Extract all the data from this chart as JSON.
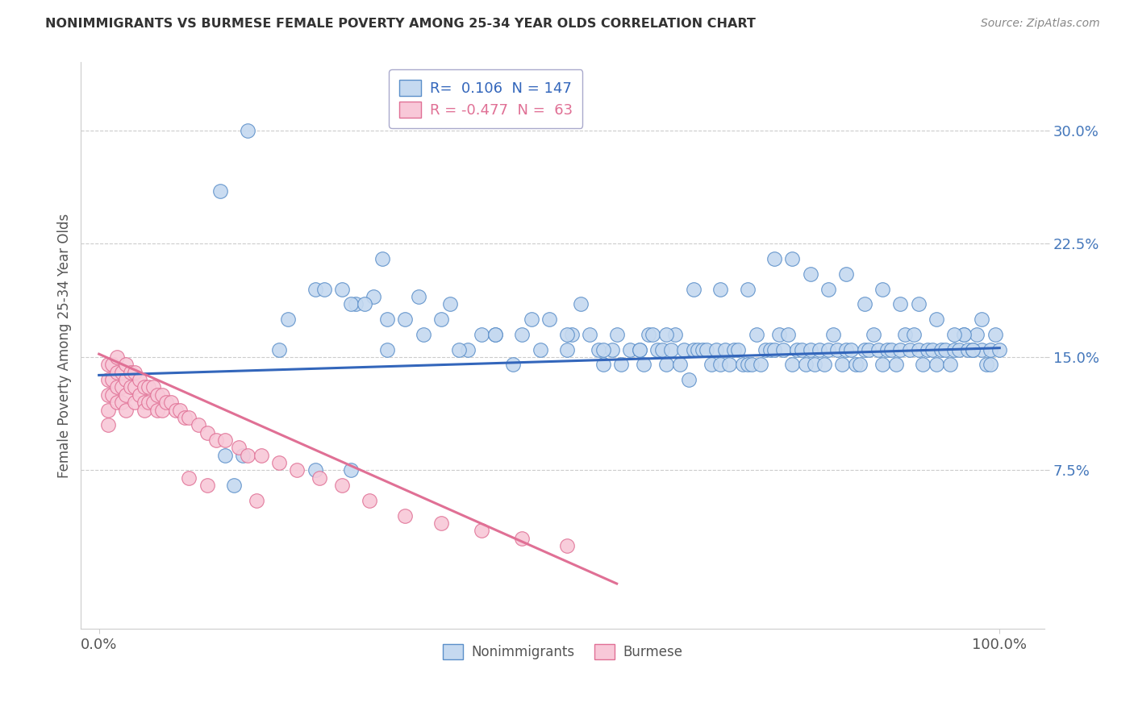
{
  "title": "NONIMMIGRANTS VS BURMESE FEMALE POVERTY AMONG 25-34 YEAR OLDS CORRELATION CHART",
  "source": "Source: ZipAtlas.com",
  "ylabel": "Female Poverty Among 25-34 Year Olds",
  "ytick_values": [
    0.075,
    0.15,
    0.225,
    0.3
  ],
  "ytick_labels": [
    "7.5%",
    "15.0%",
    "22.5%",
    "30.0%"
  ],
  "xtick_left_label": "0.0%",
  "xtick_right_label": "100.0%",
  "legend_blue_r": "0.106",
  "legend_blue_n": "147",
  "legend_pink_r": "-0.477",
  "legend_pink_n": "63",
  "blue_face": "#c5d9f0",
  "blue_edge": "#5b8fc9",
  "pink_face": "#f8c8d8",
  "pink_edge": "#e07095",
  "blue_line": "#3366bb",
  "pink_line": "#e07095",
  "grid_color": "#cccccc",
  "title_color": "#333333",
  "source_color": "#888888",
  "blue_trend_x": [
    0.0,
    1.0
  ],
  "blue_trend_y": [
    0.138,
    0.156
  ],
  "pink_trend_x": [
    0.0,
    0.575
  ],
  "pink_trend_y": [
    0.152,
    0.0
  ],
  "xlim": [
    -0.02,
    1.05
  ],
  "ylim": [
    -0.03,
    0.345
  ],
  "blue_x": [
    0.135,
    0.165,
    0.27,
    0.315,
    0.21,
    0.24,
    0.285,
    0.25,
    0.28,
    0.305,
    0.32,
    0.295,
    0.34,
    0.355,
    0.38,
    0.39,
    0.41,
    0.425,
    0.44,
    0.46,
    0.47,
    0.49,
    0.5,
    0.52,
    0.525,
    0.535,
    0.545,
    0.555,
    0.56,
    0.57,
    0.575,
    0.58,
    0.59,
    0.6,
    0.605,
    0.61,
    0.615,
    0.62,
    0.625,
    0.63,
    0.635,
    0.64,
    0.645,
    0.65,
    0.655,
    0.66,
    0.665,
    0.67,
    0.675,
    0.68,
    0.685,
    0.69,
    0.695,
    0.7,
    0.705,
    0.71,
    0.715,
    0.72,
    0.725,
    0.73,
    0.735,
    0.74,
    0.745,
    0.75,
    0.755,
    0.76,
    0.765,
    0.77,
    0.775,
    0.78,
    0.785,
    0.79,
    0.795,
    0.8,
    0.805,
    0.81,
    0.815,
    0.82,
    0.825,
    0.83,
    0.835,
    0.84,
    0.845,
    0.85,
    0.855,
    0.86,
    0.865,
    0.87,
    0.875,
    0.88,
    0.885,
    0.89,
    0.895,
    0.9,
    0.905,
    0.91,
    0.915,
    0.92,
    0.925,
    0.93,
    0.935,
    0.94,
    0.945,
    0.95,
    0.955,
    0.96,
    0.965,
    0.97,
    0.975,
    0.98,
    0.985,
    0.99,
    0.995,
    1.0,
    0.99,
    0.97,
    0.98,
    0.96,
    0.95,
    0.93,
    0.91,
    0.89,
    0.87,
    0.85,
    0.83,
    0.81,
    0.79,
    0.77,
    0.75,
    0.72,
    0.69,
    0.66,
    0.63,
    0.6,
    0.56,
    0.52,
    0.48,
    0.44,
    0.4,
    0.36,
    0.32,
    0.28,
    0.24,
    0.2,
    0.16,
    0.15,
    0.14
  ],
  "blue_y": [
    0.26,
    0.3,
    0.195,
    0.215,
    0.175,
    0.195,
    0.185,
    0.195,
    0.185,
    0.19,
    0.175,
    0.185,
    0.175,
    0.19,
    0.175,
    0.185,
    0.155,
    0.165,
    0.165,
    0.145,
    0.165,
    0.155,
    0.175,
    0.155,
    0.165,
    0.185,
    0.165,
    0.155,
    0.145,
    0.155,
    0.165,
    0.145,
    0.155,
    0.155,
    0.145,
    0.165,
    0.165,
    0.155,
    0.155,
    0.145,
    0.155,
    0.165,
    0.145,
    0.155,
    0.135,
    0.155,
    0.155,
    0.155,
    0.155,
    0.145,
    0.155,
    0.145,
    0.155,
    0.145,
    0.155,
    0.155,
    0.145,
    0.145,
    0.145,
    0.165,
    0.145,
    0.155,
    0.155,
    0.155,
    0.165,
    0.155,
    0.165,
    0.145,
    0.155,
    0.155,
    0.145,
    0.155,
    0.145,
    0.155,
    0.145,
    0.155,
    0.165,
    0.155,
    0.145,
    0.155,
    0.155,
    0.145,
    0.145,
    0.155,
    0.155,
    0.165,
    0.155,
    0.145,
    0.155,
    0.155,
    0.145,
    0.155,
    0.165,
    0.155,
    0.165,
    0.155,
    0.145,
    0.155,
    0.155,
    0.145,
    0.155,
    0.155,
    0.145,
    0.155,
    0.155,
    0.165,
    0.155,
    0.155,
    0.165,
    0.155,
    0.145,
    0.155,
    0.165,
    0.155,
    0.145,
    0.155,
    0.175,
    0.165,
    0.165,
    0.175,
    0.185,
    0.185,
    0.195,
    0.185,
    0.205,
    0.195,
    0.205,
    0.215,
    0.215,
    0.195,
    0.195,
    0.195,
    0.165,
    0.155,
    0.155,
    0.165,
    0.175,
    0.165,
    0.155,
    0.165,
    0.155,
    0.075,
    0.075,
    0.155,
    0.085,
    0.065,
    0.085
  ],
  "pink_x": [
    0.01,
    0.01,
    0.01,
    0.01,
    0.01,
    0.015,
    0.015,
    0.015,
    0.02,
    0.02,
    0.02,
    0.02,
    0.025,
    0.025,
    0.025,
    0.03,
    0.03,
    0.03,
    0.03,
    0.035,
    0.035,
    0.04,
    0.04,
    0.04,
    0.045,
    0.045,
    0.05,
    0.05,
    0.05,
    0.055,
    0.055,
    0.06,
    0.06,
    0.065,
    0.065,
    0.07,
    0.07,
    0.075,
    0.08,
    0.085,
    0.09,
    0.095,
    0.1,
    0.11,
    0.12,
    0.13,
    0.14,
    0.155,
    0.165,
    0.18,
    0.2,
    0.22,
    0.245,
    0.27,
    0.3,
    0.34,
    0.38,
    0.425,
    0.47,
    0.52,
    0.175,
    0.12,
    0.1
  ],
  "pink_y": [
    0.145,
    0.135,
    0.125,
    0.115,
    0.105,
    0.145,
    0.135,
    0.125,
    0.15,
    0.14,
    0.13,
    0.12,
    0.14,
    0.13,
    0.12,
    0.145,
    0.135,
    0.125,
    0.115,
    0.14,
    0.13,
    0.14,
    0.13,
    0.12,
    0.135,
    0.125,
    0.13,
    0.12,
    0.115,
    0.13,
    0.12,
    0.13,
    0.12,
    0.125,
    0.115,
    0.125,
    0.115,
    0.12,
    0.12,
    0.115,
    0.115,
    0.11,
    0.11,
    0.105,
    0.1,
    0.095,
    0.095,
    0.09,
    0.085,
    0.085,
    0.08,
    0.075,
    0.07,
    0.065,
    0.055,
    0.045,
    0.04,
    0.035,
    0.03,
    0.025,
    0.055,
    0.065,
    0.07
  ]
}
